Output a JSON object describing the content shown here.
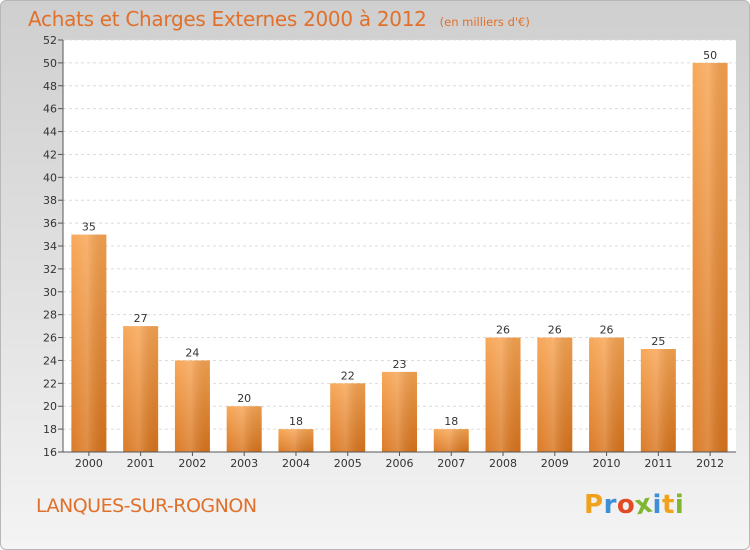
{
  "title": "Achats et Charges Externes 2000 à 2012",
  "unit": "(en milliers d'€)",
  "location": "LANQUES-SUR-ROGNON",
  "brand": {
    "letters": [
      "P",
      "r",
      "o",
      "x",
      "i",
      "t",
      "i"
    ],
    "colors": [
      "#f0a21c",
      "#3f8fd8",
      "#e04a25",
      "#7fb632",
      "#3f8fd8",
      "#f0a21c",
      "#7fb632"
    ]
  },
  "chart_data": {
    "type": "bar",
    "categories": [
      "2000",
      "2001",
      "2002",
      "2003",
      "2004",
      "2005",
      "2006",
      "2007",
      "2008",
      "2009",
      "2010",
      "2011",
      "2012"
    ],
    "values": [
      35,
      27,
      24,
      20,
      18,
      22,
      23,
      18,
      26,
      26,
      26,
      25,
      50
    ],
    "ylim": [
      16,
      52
    ],
    "yticks": [
      16,
      18,
      20,
      22,
      24,
      26,
      28,
      30,
      32,
      34,
      36,
      38,
      40,
      42,
      44,
      46,
      48,
      50,
      52
    ],
    "grid": true,
    "bar_color": "#f0913a"
  }
}
